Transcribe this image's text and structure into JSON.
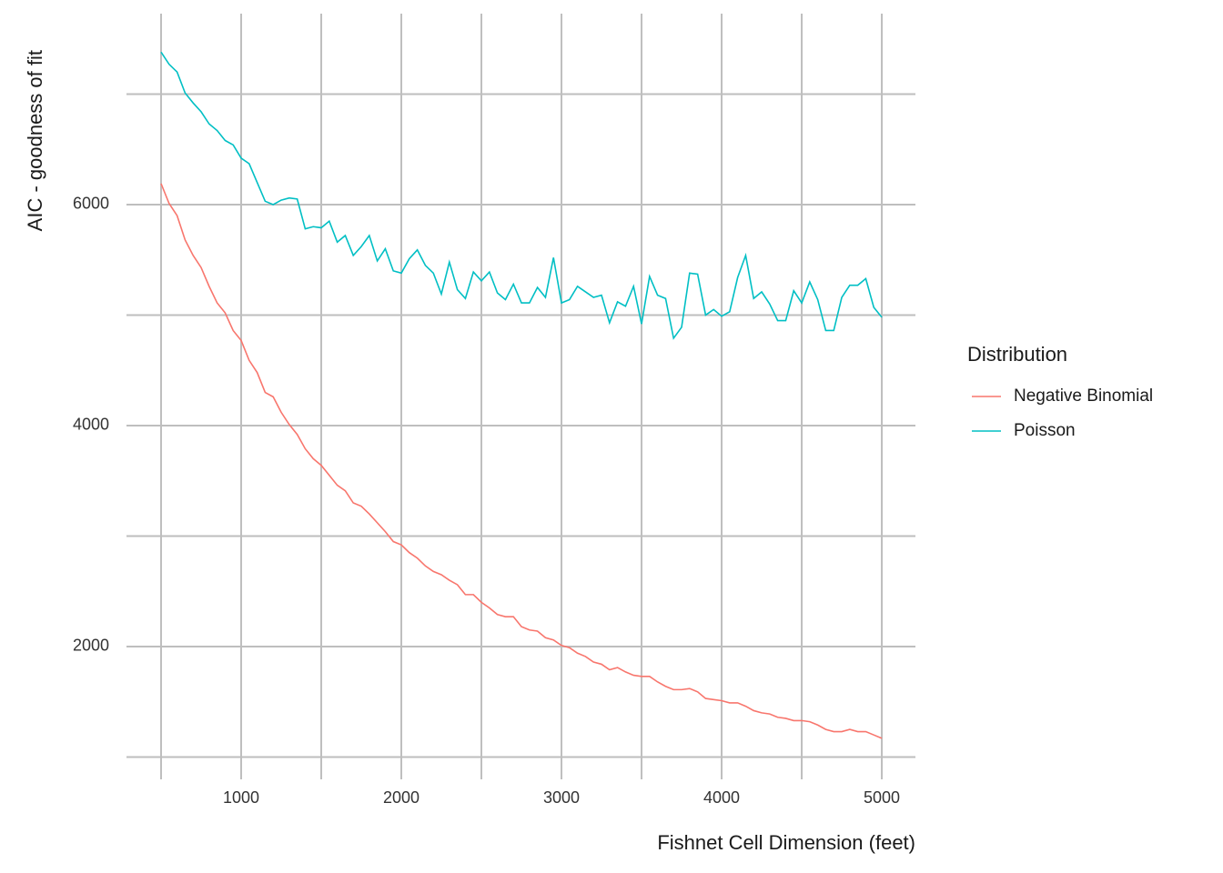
{
  "chart_data": {
    "type": "line",
    "x_label": "Fishnet Cell Dimension (feet)",
    "y_label": "AIC - goodness of fit",
    "legend_title": "Distribution",
    "legend_position": "right",
    "grid": true,
    "x": [
      500,
      550,
      600,
      650,
      700,
      750,
      800,
      850,
      900,
      950,
      1000,
      1050,
      1100,
      1150,
      1200,
      1250,
      1300,
      1350,
      1400,
      1450,
      1500,
      1550,
      1600,
      1650,
      1700,
      1750,
      1800,
      1850,
      1900,
      1950,
      2000,
      2050,
      2100,
      2150,
      2200,
      2250,
      2300,
      2350,
      2400,
      2450,
      2500,
      2550,
      2600,
      2650,
      2700,
      2750,
      2800,
      2850,
      2900,
      2950,
      3000,
      3050,
      3100,
      3150,
      3200,
      3250,
      3300,
      3350,
      3400,
      3450,
      3500,
      3550,
      3600,
      3650,
      3700,
      3750,
      3800,
      3850,
      3900,
      3950,
      4000,
      4050,
      4100,
      4150,
      4200,
      4250,
      4300,
      4350,
      4400,
      4450,
      4500,
      4550,
      4600,
      4650,
      4700,
      4750,
      4800,
      4850,
      4900,
      4950,
      5000
    ],
    "series": [
      {
        "name": "Negative Binomial",
        "color": "#F8766D",
        "values": [
          6190,
          6010,
          5900,
          5680,
          5540,
          5430,
          5260,
          5110,
          5020,
          4860,
          4770,
          4590,
          4480,
          4300,
          4260,
          4120,
          4010,
          3920,
          3790,
          3700,
          3640,
          3550,
          3460,
          3410,
          3300,
          3270,
          3200,
          3120,
          3040,
          2950,
          2920,
          2850,
          2800,
          2730,
          2680,
          2650,
          2600,
          2560,
          2470,
          2470,
          2400,
          2350,
          2290,
          2270,
          2270,
          2180,
          2150,
          2140,
          2080,
          2060,
          2010,
          1990,
          1940,
          1910,
          1860,
          1840,
          1790,
          1810,
          1770,
          1740,
          1730,
          1730,
          1680,
          1640,
          1610,
          1610,
          1620,
          1590,
          1530,
          1520,
          1510,
          1490,
          1490,
          1460,
          1420,
          1400,
          1390,
          1360,
          1350,
          1330,
          1330,
          1320,
          1290,
          1250,
          1230,
          1230,
          1250,
          1230,
          1230,
          1200,
          1170
        ]
      },
      {
        "name": "Poisson",
        "color": "#00BFC4",
        "values": [
          7380,
          7270,
          7200,
          7010,
          6920,
          6840,
          6730,
          6670,
          6580,
          6540,
          6420,
          6370,
          6200,
          6030,
          6000,
          6040,
          6060,
          6050,
          5780,
          5800,
          5790,
          5850,
          5660,
          5720,
          5540,
          5620,
          5720,
          5490,
          5600,
          5400,
          5380,
          5510,
          5590,
          5450,
          5380,
          5190,
          5480,
          5230,
          5150,
          5390,
          5310,
          5390,
          5200,
          5140,
          5280,
          5110,
          5110,
          5250,
          5160,
          5520,
          5110,
          5140,
          5260,
          5210,
          5160,
          5180,
          4930,
          5120,
          5080,
          5260,
          4920,
          5350,
          5180,
          5150,
          4790,
          4890,
          5380,
          5370,
          5000,
          5050,
          4990,
          5030,
          5340,
          5540,
          5150,
          5210,
          5100,
          4950,
          4950,
          5220,
          5110,
          5300,
          5140,
          4860,
          4860,
          5160,
          5270,
          5270,
          5330,
          5070,
          4980
        ]
      }
    ],
    "xlim": [
      284,
      5210
    ],
    "ylim": [
      897,
      7728
    ],
    "xticks": [
      1000,
      2000,
      3000,
      4000,
      5000
    ],
    "yticks": [
      2000,
      4000,
      6000
    ],
    "xminor": [
      500,
      1500,
      2500,
      3500,
      4500
    ],
    "yminor": [
      1000,
      3000,
      5000,
      7000
    ]
  }
}
